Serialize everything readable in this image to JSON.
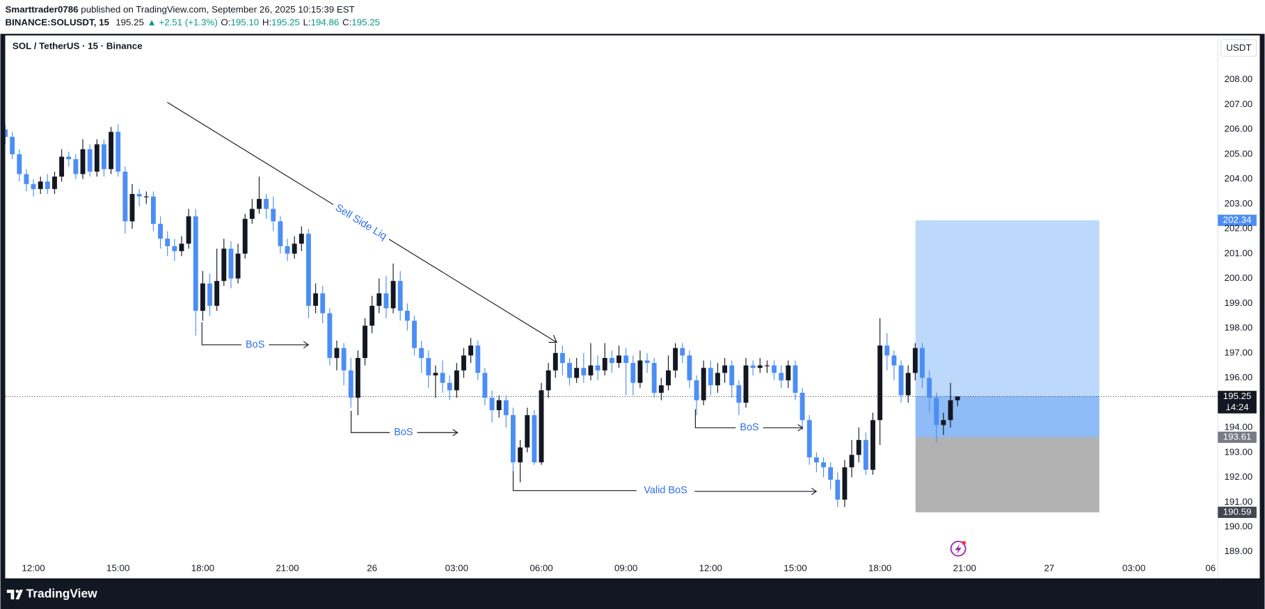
{
  "header": {
    "author": "Smarttrader0786",
    "published": " published on TradingView.com, September 26, 2025 10:15:39 EST",
    "symbol": "BINANCE:SOLUSDT, 15",
    "last": "195.25",
    "change": "▲ +2.51 (+1.3%)",
    "ohlc": [
      {
        "label": "O:",
        "value": "195.10"
      },
      {
        "label": "H:",
        "value": "195.25"
      },
      {
        "label": "L:",
        "value": "194.86"
      },
      {
        "label": "C:",
        "value": "195.25"
      }
    ]
  },
  "footer": {
    "brand": "TradingView"
  },
  "chart_data": {
    "type": "candlestick",
    "title": "SOL / TetherUS · 15 · Binance",
    "currency": "USDT",
    "up_color": "#131722",
    "down_color": "#4c8ef5",
    "grid": false,
    "candles": [
      [
        206.0,
        206.2,
        205.4,
        205.7
      ],
      [
        205.7,
        205.9,
        204.8,
        205.0
      ],
      [
        205.0,
        205.2,
        203.9,
        204.2
      ],
      [
        204.2,
        204.4,
        203.5,
        203.8
      ],
      [
        203.8,
        204.0,
        203.3,
        203.6
      ],
      [
        203.6,
        204.1,
        203.4,
        203.9
      ],
      [
        203.9,
        204.2,
        203.4,
        203.6
      ],
      [
        203.6,
        204.3,
        203.4,
        204.1
      ],
      [
        204.1,
        205.2,
        203.9,
        204.9
      ],
      [
        204.9,
        205.1,
        204.5,
        204.8
      ],
      [
        204.8,
        205.0,
        204.0,
        204.2
      ],
      [
        204.2,
        205.6,
        204.0,
        205.2
      ],
      [
        205.2,
        205.4,
        204.1,
        204.3
      ],
      [
        204.3,
        205.6,
        204.1,
        205.4
      ],
      [
        205.4,
        205.6,
        204.1,
        204.4
      ],
      [
        204.4,
        206.1,
        204.2,
        205.9
      ],
      [
        205.9,
        206.2,
        204.1,
        204.3
      ],
      [
        204.3,
        204.5,
        201.8,
        202.3
      ],
      [
        202.3,
        203.8,
        202.0,
        203.4
      ],
      [
        203.4,
        203.6,
        202.9,
        203.3
      ],
      [
        203.3,
        203.5,
        203.0,
        203.3
      ],
      [
        203.3,
        203.5,
        201.9,
        202.2
      ],
      [
        202.2,
        202.5,
        201.2,
        201.6
      ],
      [
        201.6,
        201.9,
        200.9,
        201.3
      ],
      [
        201.3,
        201.6,
        200.7,
        201.1
      ],
      [
        201.1,
        201.7,
        200.9,
        201.4
      ],
      [
        201.4,
        202.8,
        201.2,
        202.5
      ],
      [
        202.5,
        202.8,
        197.7,
        198.7
      ],
      [
        198.7,
        200.3,
        198.3,
        199.8
      ],
      [
        199.8,
        200.2,
        198.5,
        198.9
      ],
      [
        198.9,
        201.2,
        198.7,
        199.9
      ],
      [
        199.9,
        201.6,
        199.7,
        201.2
      ],
      [
        201.2,
        201.5,
        199.6,
        200.0
      ],
      [
        200.0,
        201.4,
        199.8,
        201.0
      ],
      [
        201.0,
        202.6,
        200.8,
        202.4
      ],
      [
        202.4,
        203.2,
        202.2,
        202.8
      ],
      [
        202.8,
        204.1,
        202.6,
        203.2
      ],
      [
        203.2,
        203.4,
        202.4,
        202.8
      ],
      [
        202.8,
        203.3,
        201.9,
        202.3
      ],
      [
        202.3,
        202.5,
        201.0,
        201.3
      ],
      [
        201.3,
        201.6,
        200.7,
        201.0
      ],
      [
        201.0,
        201.7,
        200.8,
        201.4
      ],
      [
        201.4,
        202.1,
        201.1,
        201.8
      ],
      [
        201.8,
        202.0,
        198.4,
        198.9
      ],
      [
        198.9,
        199.8,
        198.6,
        199.4
      ],
      [
        199.4,
        199.7,
        198.2,
        198.6
      ],
      [
        198.6,
        198.8,
        196.5,
        196.8
      ],
      [
        196.8,
        197.5,
        196.3,
        197.2
      ],
      [
        197.2,
        197.4,
        195.7,
        196.3
      ],
      [
        196.3,
        196.8,
        194.8,
        195.2
      ],
      [
        195.2,
        197.1,
        194.5,
        196.8
      ],
      [
        196.8,
        198.4,
        196.5,
        198.1
      ],
      [
        198.1,
        199.3,
        197.8,
        198.9
      ],
      [
        198.9,
        200.0,
        198.6,
        199.4
      ],
      [
        199.4,
        200.1,
        198.4,
        198.8
      ],
      [
        198.8,
        200.6,
        198.6,
        199.9
      ],
      [
        199.9,
        200.3,
        198.3,
        198.7
      ],
      [
        198.7,
        199.0,
        197.9,
        198.3
      ],
      [
        198.3,
        198.5,
        196.9,
        197.2
      ],
      [
        197.2,
        197.5,
        196.2,
        196.8
      ],
      [
        196.8,
        197.1,
        195.6,
        196.1
      ],
      [
        196.1,
        196.5,
        195.2,
        196.2
      ],
      [
        196.2,
        196.7,
        195.4,
        195.8
      ],
      [
        195.8,
        196.1,
        195.1,
        195.5
      ],
      [
        195.5,
        196.6,
        195.2,
        196.3
      ],
      [
        196.3,
        197.2,
        196.0,
        196.9
      ],
      [
        196.9,
        197.6,
        196.6,
        197.3
      ],
      [
        197.3,
        197.5,
        195.9,
        196.2
      ],
      [
        196.2,
        196.4,
        194.9,
        195.2
      ],
      [
        195.2,
        195.5,
        194.2,
        194.7
      ],
      [
        194.7,
        195.3,
        194.4,
        195.1
      ],
      [
        195.1,
        195.3,
        194.0,
        194.5
      ],
      [
        194.5,
        194.8,
        192.2,
        192.6
      ],
      [
        192.6,
        193.5,
        191.8,
        193.2
      ],
      [
        193.2,
        194.8,
        193.0,
        194.5
      ],
      [
        194.5,
        194.7,
        192.5,
        192.6
      ],
      [
        192.6,
        195.8,
        192.5,
        195.5
      ],
      [
        195.5,
        196.6,
        195.2,
        196.3
      ],
      [
        196.3,
        197.4,
        196.0,
        197.0
      ],
      [
        197.0,
        197.3,
        196.1,
        196.6
      ],
      [
        196.6,
        196.8,
        195.7,
        196.0
      ],
      [
        196.0,
        196.8,
        195.8,
        196.4
      ],
      [
        196.4,
        197.0,
        195.8,
        196.1
      ],
      [
        196.1,
        197.4,
        195.9,
        196.5
      ],
      [
        196.5,
        196.9,
        195.9,
        196.3
      ],
      [
        196.3,
        197.4,
        196.1,
        196.8
      ],
      [
        196.8,
        197.1,
        196.2,
        196.6
      ],
      [
        196.6,
        197.3,
        196.4,
        196.9
      ],
      [
        196.9,
        197.2,
        195.3,
        196.6
      ],
      [
        196.6,
        196.9,
        195.3,
        195.8
      ],
      [
        195.8,
        197.1,
        195.6,
        196.7
      ],
      [
        196.7,
        197.0,
        196.2,
        196.6
      ],
      [
        196.6,
        196.8,
        195.2,
        195.4
      ],
      [
        195.4,
        196.0,
        195.1,
        195.7
      ],
      [
        195.7,
        196.9,
        195.5,
        196.3
      ],
      [
        196.3,
        197.4,
        196.0,
        197.2
      ],
      [
        197.2,
        197.4,
        196.6,
        196.9
      ],
      [
        196.9,
        197.1,
        195.6,
        195.9
      ],
      [
        195.9,
        196.1,
        194.5,
        195.1
      ],
      [
        195.1,
        196.7,
        194.9,
        196.4
      ],
      [
        196.4,
        196.7,
        195.3,
        195.7
      ],
      [
        195.7,
        196.6,
        195.4,
        196.2
      ],
      [
        196.2,
        196.8,
        195.8,
        196.5
      ],
      [
        196.5,
        196.7,
        195.2,
        195.7
      ],
      [
        195.7,
        195.9,
        194.5,
        195.0
      ],
      [
        195.0,
        196.8,
        194.8,
        196.5
      ],
      [
        196.5,
        196.7,
        196.1,
        196.4
      ],
      [
        196.4,
        196.8,
        196.2,
        196.5
      ],
      [
        196.5,
        196.7,
        196.2,
        196.5
      ],
      [
        196.5,
        196.7,
        195.9,
        196.2
      ],
      [
        196.2,
        196.5,
        195.6,
        195.9
      ],
      [
        195.9,
        196.7,
        195.6,
        196.5
      ],
      [
        196.5,
        196.7,
        195.1,
        195.4
      ],
      [
        195.4,
        195.6,
        193.9,
        194.3
      ],
      [
        194.3,
        194.5,
        192.5,
        192.8
      ],
      [
        192.8,
        193.0,
        192.2,
        192.6
      ],
      [
        192.6,
        192.8,
        192.0,
        192.4
      ],
      [
        192.4,
        192.6,
        191.5,
        191.9
      ],
      [
        191.9,
        192.2,
        190.8,
        191.1
      ],
      [
        191.1,
        192.7,
        190.8,
        192.4
      ],
      [
        192.4,
        193.5,
        192.0,
        192.9
      ],
      [
        192.9,
        194.0,
        192.6,
        193.5
      ],
      [
        193.5,
        193.8,
        192.1,
        192.3
      ],
      [
        192.3,
        194.6,
        192.1,
        194.3
      ],
      [
        194.3,
        198.4,
        193.3,
        197.3
      ],
      [
        197.3,
        197.8,
        196.3,
        196.9
      ],
      [
        196.9,
        197.1,
        195.9,
        196.5
      ],
      [
        196.5,
        196.7,
        195.0,
        195.3
      ],
      [
        195.3,
        196.5,
        195.0,
        196.2
      ],
      [
        196.2,
        197.4,
        195.9,
        197.2
      ],
      [
        197.2,
        197.4,
        195.6,
        196.0
      ],
      [
        196.0,
        196.3,
        194.6,
        195.2
      ],
      [
        195.2,
        195.4,
        193.4,
        194.1
      ],
      [
        194.1,
        194.6,
        193.7,
        194.3
      ],
      [
        194.3,
        195.8,
        194.0,
        195.1
      ],
      [
        195.1,
        195.25,
        194.86,
        195.25
      ]
    ],
    "ylim": [
      187.93,
      209.78
    ],
    "yticks": [
      {
        "value": 189,
        "label": "189.00"
      },
      {
        "value": 190,
        "label": "190.00"
      },
      {
        "value": 191,
        "label": "191.00"
      },
      {
        "value": 192,
        "label": "192.00"
      },
      {
        "value": 193,
        "label": "193.00"
      },
      {
        "value": 194,
        "label": "194.00"
      },
      {
        "value": 195,
        "label": "195.00"
      },
      {
        "value": 196,
        "label": "196.00"
      },
      {
        "value": 197,
        "label": "197.00"
      },
      {
        "value": 198,
        "label": "198.00"
      },
      {
        "value": 199,
        "label": "199.00"
      },
      {
        "value": 200,
        "label": "200.00"
      },
      {
        "value": 201,
        "label": "201.00"
      },
      {
        "value": 202,
        "label": "202.00"
      },
      {
        "value": 203,
        "label": "203.00"
      },
      {
        "value": 204,
        "label": "204.00"
      },
      {
        "value": 205,
        "label": "205.00"
      },
      {
        "value": 206,
        "label": "206.00"
      },
      {
        "value": 207,
        "label": "207.00"
      },
      {
        "value": 208,
        "label": "208.00"
      }
    ],
    "xlim": [
      0,
      171.9
    ],
    "xticks": [
      {
        "value": 4,
        "label": "12:00"
      },
      {
        "value": 16,
        "label": "15:00"
      },
      {
        "value": 28,
        "label": "18:00"
      },
      {
        "value": 40,
        "label": "21:00"
      },
      {
        "value": 52,
        "label": "26"
      },
      {
        "value": 64,
        "label": "03:00"
      },
      {
        "value": 76,
        "label": "06:00"
      },
      {
        "value": 88,
        "label": "09:00"
      },
      {
        "value": 100,
        "label": "12:00"
      },
      {
        "value": 112,
        "label": "15:00"
      },
      {
        "value": 124,
        "label": "18:00"
      },
      {
        "value": 136,
        "label": "21:00"
      },
      {
        "value": 148,
        "label": "27"
      },
      {
        "value": 160,
        "label": "03:00"
      },
      {
        "value": 172,
        "label": "06"
      }
    ],
    "current_price": 195.25,
    "countdown": "14:24",
    "position": {
      "target": 202.34,
      "entry": 193.61,
      "stop": 190.59
    },
    "annotations": [
      {
        "text": "Sell Side Liq"
      },
      {
        "text": "BoS"
      },
      {
        "text": "BoS"
      },
      {
        "text": "Valid BoS"
      },
      {
        "text": "BoS"
      }
    ]
  }
}
